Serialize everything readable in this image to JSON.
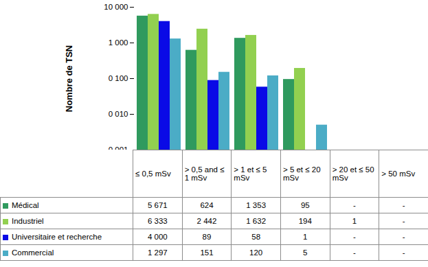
{
  "chart_data": {
    "type": "bar",
    "y_label": "Nombre de TSN",
    "categories": [
      "≤ 0,5 mSv",
      "> 0,5 and ≤ 1 mSv",
      "> 1 et ≤ 5 mSv",
      "> 5 et ≤ 20 mSv",
      "> 20 et ≤ 50 mSv",
      "> 50 mSv"
    ],
    "series": [
      {
        "name": "Médical",
        "color": "#2f9a5e",
        "values": [
          5671,
          624,
          1353,
          95,
          null,
          null
        ],
        "value_labels": [
          "5 671",
          "624",
          "1 353",
          "95",
          "-",
          "-"
        ]
      },
      {
        "name": "Industriel",
        "color": "#92d050",
        "values": [
          6333,
          2442,
          1632,
          194,
          1,
          null
        ],
        "value_labels": [
          "6 333",
          "2 442",
          "1 632",
          "194",
          "1",
          "-"
        ]
      },
      {
        "name": "Universitaire et recherche",
        "color": "#0a0ae6",
        "values": [
          4000,
          89,
          58,
          1,
          null,
          null
        ],
        "value_labels": [
          "4 000",
          "89",
          "58",
          "1",
          "-",
          "-"
        ]
      },
      {
        "name": "Commercial",
        "color": "#4bacc6",
        "values": [
          1297,
          151,
          120,
          5,
          null,
          null
        ],
        "value_labels": [
          "1 297",
          "151",
          "120",
          "5",
          "-",
          "-"
        ]
      }
    ],
    "log": "y",
    "ylim": [
      1,
      10000
    ],
    "yticks": [
      {
        "value": 1,
        "label": "0 001"
      },
      {
        "value": 10,
        "label": "0 010"
      },
      {
        "value": 100,
        "label": "0 100"
      },
      {
        "value": 1000,
        "label": "1 000"
      },
      {
        "value": 10000,
        "label": "10 000"
      }
    ],
    "grid": false,
    "tick_labels": "y"
  }
}
